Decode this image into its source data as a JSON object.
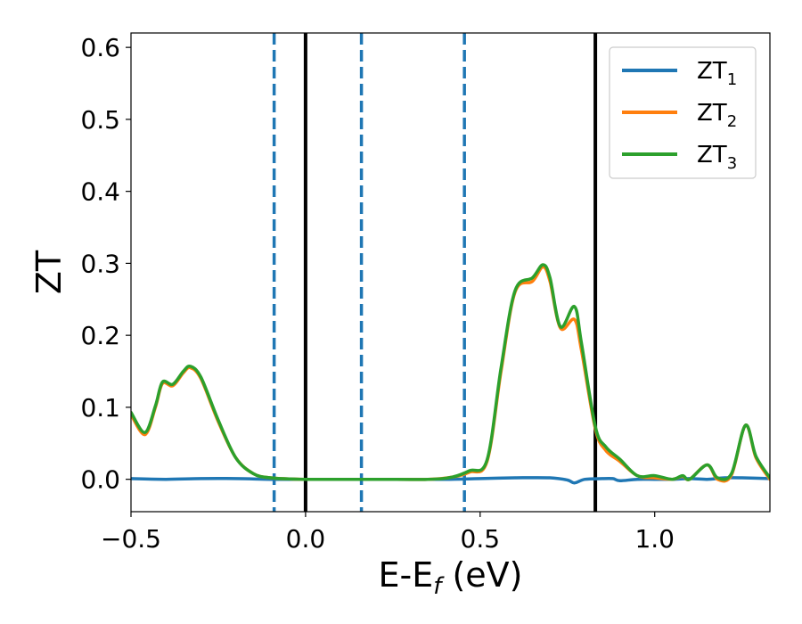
{
  "chart_data": {
    "type": "line",
    "title": "",
    "xlabel": "E-E",
    "xlabel_sub": "f",
    "xlabel_unit": " (eV)",
    "ylabel": "ZT",
    "xlim": [
      -0.5,
      1.33
    ],
    "ylim": [
      -0.045,
      0.62
    ],
    "grid": false,
    "legend_position": "top-right",
    "xticks": [
      {
        "value": -0.5,
        "label": "−0.5"
      },
      {
        "value": 0.0,
        "label": "0.0"
      },
      {
        "value": 0.5,
        "label": "0.5"
      },
      {
        "value": 1.0,
        "label": "1.0"
      }
    ],
    "yticks": [
      {
        "value": 0.0,
        "label": "0.0"
      },
      {
        "value": 0.1,
        "label": "0.1"
      },
      {
        "value": 0.2,
        "label": "0.2"
      },
      {
        "value": 0.3,
        "label": "0.3"
      },
      {
        "value": 0.4,
        "label": "0.4"
      },
      {
        "value": 0.5,
        "label": "0.5"
      },
      {
        "value": 0.6,
        "label": "0.6"
      }
    ],
    "vertical_lines": [
      {
        "x": -0.09,
        "style": "dashed",
        "color": "#1f77b4"
      },
      {
        "x": 0.0,
        "style": "solid",
        "color": "#000000"
      },
      {
        "x": 0.16,
        "style": "dashed",
        "color": "#1f77b4"
      },
      {
        "x": 0.455,
        "style": "dashed",
        "color": "#1f77b4"
      },
      {
        "x": 0.83,
        "style": "solid",
        "color": "#000000"
      }
    ],
    "series": [
      {
        "name": "ZT",
        "name_sub": "1",
        "color": "#1f77b4",
        "points": [
          [
            -0.5,
            0.001
          ],
          [
            -0.4,
            0.0
          ],
          [
            -0.3,
            0.001
          ],
          [
            -0.2,
            0.001
          ],
          [
            -0.1,
            0.0
          ],
          [
            0.0,
            0.0
          ],
          [
            0.2,
            0.0
          ],
          [
            0.4,
            0.0
          ],
          [
            0.5,
            0.001
          ],
          [
            0.6,
            0.002
          ],
          [
            0.7,
            0.002
          ],
          [
            0.75,
            -0.001
          ],
          [
            0.77,
            -0.005
          ],
          [
            0.8,
            0.0
          ],
          [
            0.85,
            0.001
          ],
          [
            0.88,
            0.001
          ],
          [
            0.9,
            -0.002
          ],
          [
            0.95,
            0.0
          ],
          [
            1.0,
            0.0
          ],
          [
            1.05,
            0.0
          ],
          [
            1.1,
            0.001
          ],
          [
            1.15,
            0.0
          ],
          [
            1.2,
            0.002
          ],
          [
            1.25,
            0.002
          ],
          [
            1.33,
            0.001
          ]
        ]
      },
      {
        "name": "ZT",
        "name_sub": "2",
        "color": "#ff7f0e",
        "points": [
          [
            -0.5,
            0.09
          ],
          [
            -0.46,
            0.062
          ],
          [
            -0.43,
            0.1
          ],
          [
            -0.41,
            0.133
          ],
          [
            -0.38,
            0.13
          ],
          [
            -0.35,
            0.148
          ],
          [
            -0.33,
            0.155
          ],
          [
            -0.3,
            0.14
          ],
          [
            -0.25,
            0.08
          ],
          [
            -0.2,
            0.03
          ],
          [
            -0.15,
            0.008
          ],
          [
            -0.1,
            0.002
          ],
          [
            0.0,
            0.0
          ],
          [
            0.2,
            0.0
          ],
          [
            0.35,
            0.0
          ],
          [
            0.42,
            0.003
          ],
          [
            0.47,
            0.01
          ],
          [
            0.52,
            0.025
          ],
          [
            0.56,
            0.15
          ],
          [
            0.6,
            0.26
          ],
          [
            0.65,
            0.275
          ],
          [
            0.68,
            0.295
          ],
          [
            0.7,
            0.275
          ],
          [
            0.73,
            0.21
          ],
          [
            0.77,
            0.222
          ],
          [
            0.79,
            0.18
          ],
          [
            0.83,
            0.07
          ],
          [
            0.86,
            0.04
          ],
          [
            0.9,
            0.025
          ],
          [
            0.95,
            0.005
          ],
          [
            1.0,
            0.002
          ],
          [
            1.05,
            0.0
          ],
          [
            1.08,
            0.004
          ],
          [
            1.1,
            0.0
          ],
          [
            1.15,
            0.02
          ],
          [
            1.18,
            0.0
          ],
          [
            1.22,
            0.006
          ],
          [
            1.26,
            0.075
          ],
          [
            1.29,
            0.03
          ],
          [
            1.33,
            0.0
          ]
        ]
      },
      {
        "name": "ZT",
        "name_sub": "3",
        "color": "#2ca02c",
        "points": [
          [
            -0.5,
            0.093
          ],
          [
            -0.46,
            0.065
          ],
          [
            -0.43,
            0.102
          ],
          [
            -0.41,
            0.135
          ],
          [
            -0.38,
            0.132
          ],
          [
            -0.35,
            0.15
          ],
          [
            -0.33,
            0.157
          ],
          [
            -0.3,
            0.142
          ],
          [
            -0.25,
            0.082
          ],
          [
            -0.2,
            0.03
          ],
          [
            -0.15,
            0.008
          ],
          [
            -0.1,
            0.002
          ],
          [
            0.0,
            0.0
          ],
          [
            0.2,
            0.0
          ],
          [
            0.35,
            0.0
          ],
          [
            0.42,
            0.003
          ],
          [
            0.47,
            0.012
          ],
          [
            0.52,
            0.027
          ],
          [
            0.56,
            0.155
          ],
          [
            0.6,
            0.262
          ],
          [
            0.65,
            0.28
          ],
          [
            0.68,
            0.298
          ],
          [
            0.7,
            0.28
          ],
          [
            0.73,
            0.212
          ],
          [
            0.77,
            0.24
          ],
          [
            0.79,
            0.19
          ],
          [
            0.83,
            0.073
          ],
          [
            0.86,
            0.045
          ],
          [
            0.9,
            0.028
          ],
          [
            0.95,
            0.005
          ],
          [
            1.0,
            0.005
          ],
          [
            1.05,
            0.0
          ],
          [
            1.08,
            0.005
          ],
          [
            1.1,
            0.0
          ],
          [
            1.15,
            0.02
          ],
          [
            1.18,
            0.002
          ],
          [
            1.22,
            0.008
          ],
          [
            1.26,
            0.075
          ],
          [
            1.29,
            0.032
          ],
          [
            1.33,
            0.002
          ]
        ]
      }
    ]
  }
}
